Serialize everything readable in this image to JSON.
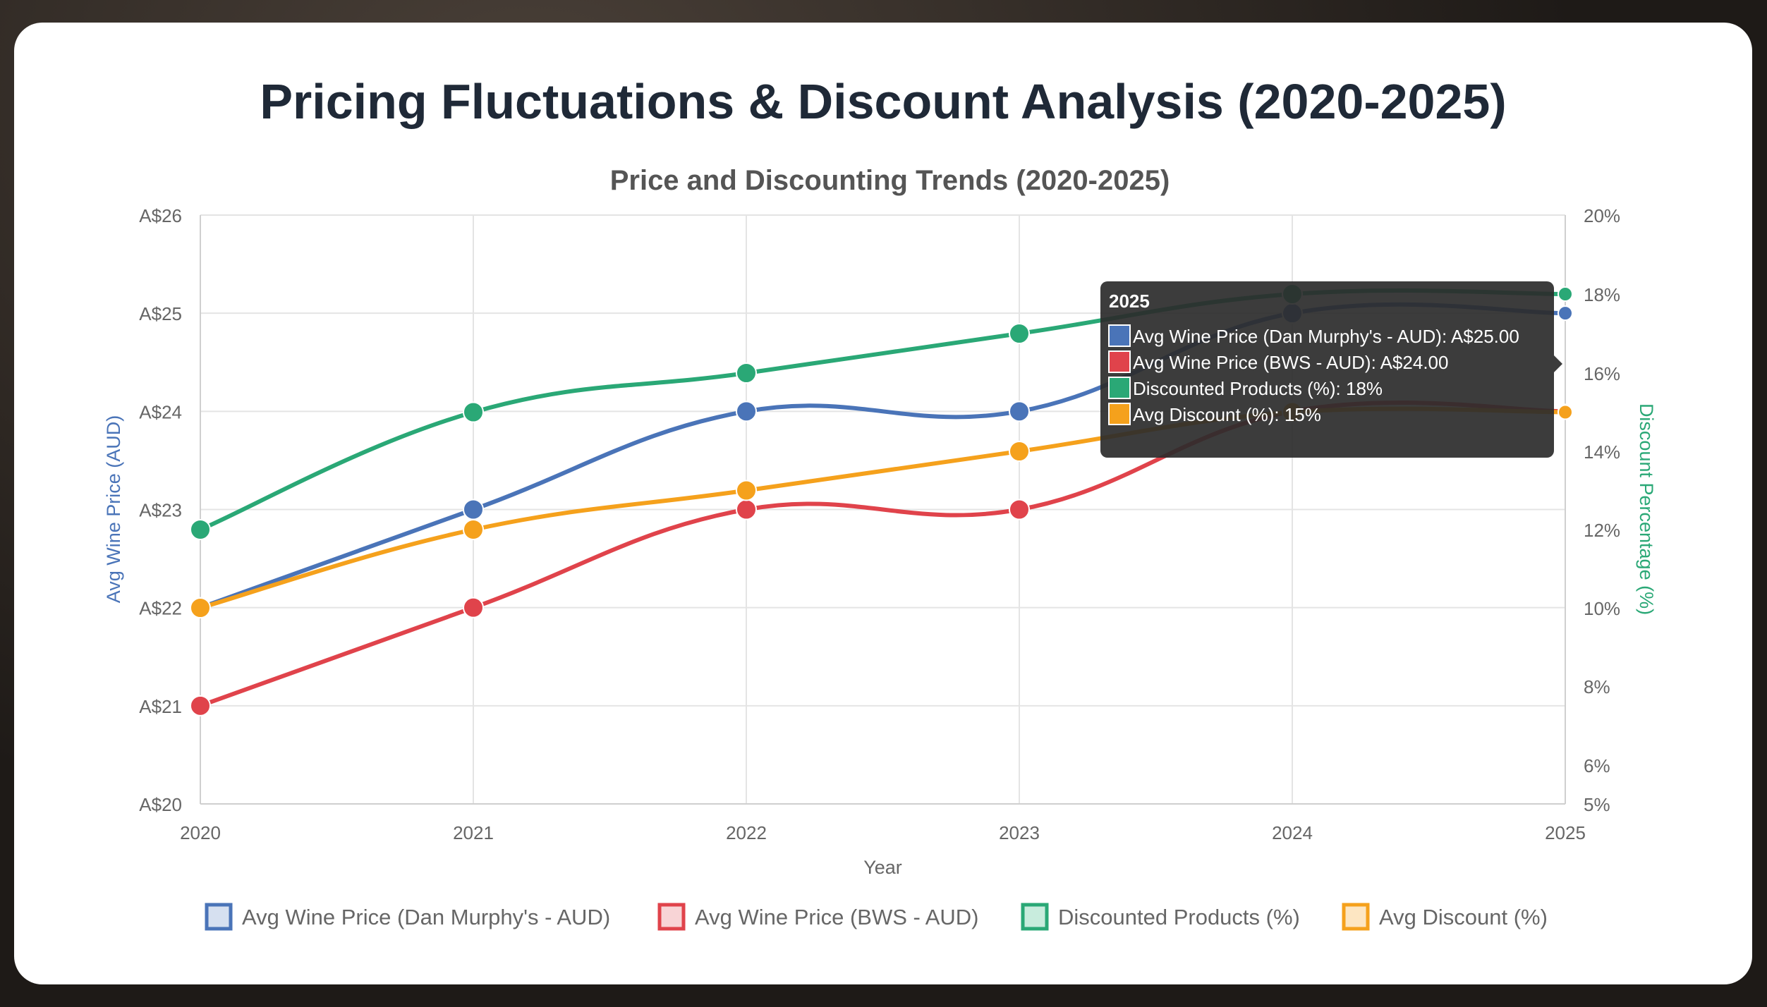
{
  "page": {
    "title": "Pricing Fluctuations & Discount Analysis (2020-2025)"
  },
  "colors": {
    "blue": "#4a74b8",
    "red": "#e0434b",
    "green": "#2aa876",
    "orange": "#f5a11c",
    "grid": "#e4e4e4",
    "axis_text": "#666666",
    "tooltip_bg": "#2b2b2b"
  },
  "chart_data": {
    "type": "line",
    "title": "Price and Discounting Trends (2020-2025)",
    "xlabel": "Year",
    "ylabel": "Avg Wine Price (AUD)",
    "y2label": "Discount Percentage (%)",
    "categories": [
      "2020",
      "2021",
      "2022",
      "2023",
      "2024",
      "2025"
    ],
    "ylim": [
      20,
      26
    ],
    "y_ticks": [
      "A$20",
      "A$21",
      "A$22",
      "A$23",
      "A$24",
      "A$25",
      "A$26"
    ],
    "y2_ticks": [
      "5%",
      "6%",
      "8%",
      "10%",
      "12%",
      "14%",
      "16%",
      "18%",
      "20%"
    ],
    "series": [
      {
        "name": "Avg Wine Price (Dan Murphy's - AUD)",
        "axis": "left",
        "color": "#4a74b8",
        "fill": "#d6e0f0",
        "values": [
          22,
          23,
          24,
          24,
          25,
          25
        ]
      },
      {
        "name": "Avg Wine Price (BWS - AUD)",
        "axis": "left",
        "color": "#e0434b",
        "fill": "#f8d4d6",
        "values": [
          21,
          22,
          23,
          23,
          24,
          24
        ]
      },
      {
        "name": "Discounted Products (%)",
        "axis": "right",
        "color": "#2aa876",
        "fill": "#c8ecdd",
        "values": [
          12,
          15,
          16,
          17,
          18,
          18
        ]
      },
      {
        "name": "Avg Discount (%)",
        "axis": "right",
        "color": "#f5a11c",
        "fill": "#fde6c2",
        "values": [
          10,
          12,
          13,
          14,
          15,
          15
        ]
      }
    ],
    "legend": "bottom",
    "tooltip": {
      "title": "2025",
      "lines": [
        "Avg Wine Price (Dan Murphy's - AUD): A$25.00",
        "Avg Wine Price (BWS - AUD): A$24.00",
        "Discounted Products (%): 18%",
        "Avg Discount (%): 15%"
      ]
    }
  }
}
